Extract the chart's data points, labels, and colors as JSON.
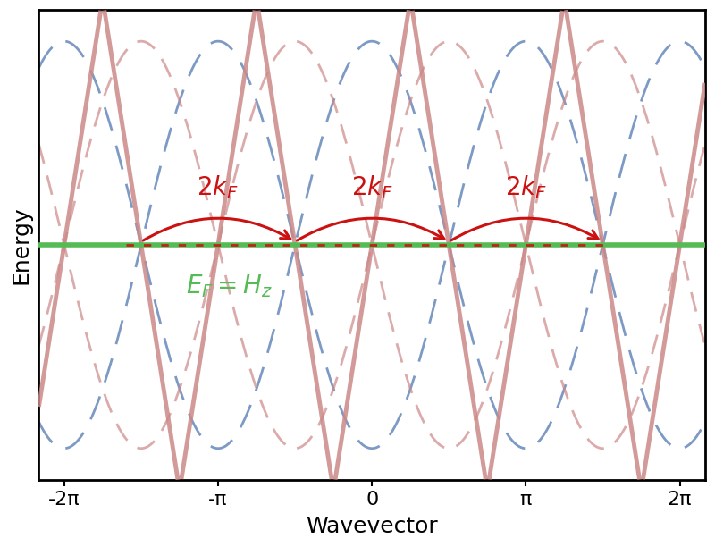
{
  "xlabel": "Wavevector",
  "ylabel": "Energy",
  "xlim": [
    -6.8,
    6.8
  ],
  "ylim": [
    -1.5,
    1.5
  ],
  "xticks": [
    -6.283185307,
    -3.141592653,
    0,
    3.141592653,
    6.283185307
  ],
  "xticklabels": [
    "-2π",
    "-π",
    "0",
    "π",
    "2π"
  ],
  "yticks": [],
  "fermi_energy": 0.0,
  "fermi_color": "#55bb55",
  "fermi_linewidth": 4.0,
  "blue_color": "#6688bb",
  "red_dashed_color": "#cc8888",
  "red_solid_color": "#cc8888",
  "arrow_color": "#cc1111",
  "arrow_text_color": "#cc1111",
  "ef_text_color": "#55bb55",
  "blue_amplitude": 1.3,
  "red_amplitude": 1.3,
  "linear_slope": 2.0,
  "background_color": "#ffffff",
  "linewidth_blue_dashed": 2.0,
  "linewidth_red_dashed": 2.0,
  "linewidth_solid": 3.5,
  "fontsize_label": 18,
  "fontsize_tick": 16,
  "fontsize_arrow_text": 20,
  "fontsize_ef": 20,
  "pi": 3.141592653589793
}
